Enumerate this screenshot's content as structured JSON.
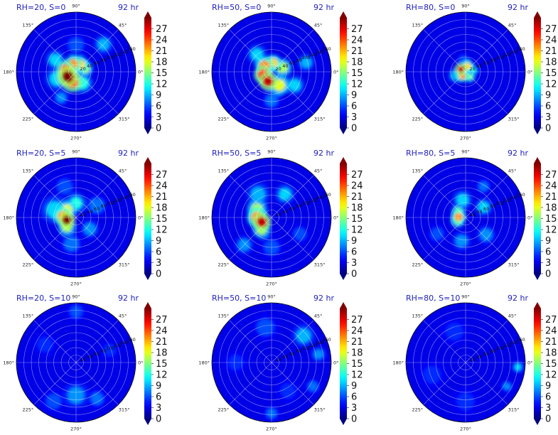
{
  "chart_data": {
    "type": "polar-contour",
    "colormap": "jet",
    "colorbar": {
      "ticks": [
        "0",
        "3",
        "6",
        "9",
        "12",
        "15",
        "18",
        "21",
        "24",
        "27"
      ],
      "min": 0,
      "max": 30
    },
    "angle_ticks": [
      "90°",
      "45°",
      "0°",
      "315°",
      "270°",
      "225°",
      "180°",
      "135°"
    ],
    "panels": [
      {
        "title_left": "RH=20, S=0",
        "title_right": "92 hr",
        "radial_labels": [
          "20",
          "40",
          "60",
          "80",
          "100",
          "120",
          "140",
          "160"
        ],
        "blobs": [
          {
            "theta": 210,
            "r": 0.16,
            "s": 0.1,
            "v": 30
          },
          {
            "theta": 250,
            "r": 0.18,
            "s": 0.1,
            "v": 26
          },
          {
            "theta": 170,
            "r": 0.18,
            "s": 0.09,
            "v": 24
          },
          {
            "theta": 110,
            "r": 0.14,
            "s": 0.08,
            "v": 22
          },
          {
            "theta": 60,
            "r": 0.14,
            "s": 0.08,
            "v": 20
          },
          {
            "theta": 20,
            "r": 0.16,
            "s": 0.08,
            "v": 16
          },
          {
            "theta": 300,
            "r": 0.22,
            "s": 0.1,
            "v": 12
          },
          {
            "theta": 150,
            "r": 0.4,
            "s": 0.1,
            "v": 10
          },
          {
            "theta": 45,
            "r": 0.65,
            "s": 0.1,
            "v": 9
          },
          {
            "theta": 240,
            "r": 0.5,
            "s": 0.08,
            "v": 8
          },
          {
            "theta": 200,
            "r": 0.34,
            "s": 0.12,
            "v": 10
          },
          {
            "theta": 90,
            "r": 0.45,
            "s": 0.12,
            "v": 6
          }
        ]
      },
      {
        "title_left": "RH=50, S=0",
        "title_right": "92 hr",
        "radial_labels": [
          "20",
          "40",
          "60",
          "80",
          "100",
          "120",
          "140",
          "160"
        ],
        "blobs": [
          {
            "theta": 250,
            "r": 0.17,
            "s": 0.09,
            "v": 28
          },
          {
            "theta": 200,
            "r": 0.15,
            "s": 0.09,
            "v": 26
          },
          {
            "theta": 140,
            "r": 0.15,
            "s": 0.09,
            "v": 22
          },
          {
            "theta": 80,
            "r": 0.15,
            "s": 0.08,
            "v": 20
          },
          {
            "theta": 20,
            "r": 0.2,
            "s": 0.09,
            "v": 16
          },
          {
            "theta": 300,
            "r": 0.26,
            "s": 0.1,
            "v": 18
          },
          {
            "theta": 130,
            "r": 0.38,
            "s": 0.1,
            "v": 10
          },
          {
            "theta": 330,
            "r": 0.45,
            "s": 0.1,
            "v": 10
          },
          {
            "theta": 15,
            "r": 0.6,
            "s": 0.09,
            "v": 9
          },
          {
            "theta": 270,
            "r": 0.48,
            "s": 0.1,
            "v": 7
          }
        ]
      },
      {
        "title_left": "RH=80, S=0",
        "title_right": "92 hr",
        "radial_labels": [
          "20",
          "40",
          "60",
          "80",
          "100",
          "120",
          "140",
          "160"
        ],
        "blobs": [
          {
            "theta": 150,
            "r": 0.09,
            "s": 0.06,
            "v": 28
          },
          {
            "theta": 230,
            "r": 0.09,
            "s": 0.06,
            "v": 22
          },
          {
            "theta": 70,
            "r": 0.1,
            "s": 0.06,
            "v": 20
          },
          {
            "theta": 310,
            "r": 0.11,
            "s": 0.06,
            "v": 14
          },
          {
            "theta": 10,
            "r": 0.12,
            "s": 0.06,
            "v": 12
          },
          {
            "theta": 200,
            "r": 0.18,
            "s": 0.08,
            "v": 9
          },
          {
            "theta": 100,
            "r": 0.2,
            "s": 0.07,
            "v": 6
          }
        ]
      },
      {
        "title_left": "RH=20, S=5",
        "title_right": "92 hr",
        "radial_labels": [
          "20",
          "40",
          "60",
          "80",
          "100",
          "120",
          "140",
          "160"
        ],
        "blobs": [
          {
            "theta": 195,
            "r": 0.16,
            "s": 0.08,
            "v": 30
          },
          {
            "theta": 175,
            "r": 0.22,
            "s": 0.09,
            "v": 22
          },
          {
            "theta": 140,
            "r": 0.2,
            "s": 0.09,
            "v": 18
          },
          {
            "theta": 225,
            "r": 0.22,
            "s": 0.09,
            "v": 16
          },
          {
            "theta": 90,
            "r": 0.24,
            "s": 0.1,
            "v": 12
          },
          {
            "theta": 160,
            "r": 0.38,
            "s": 0.14,
            "v": 10
          },
          {
            "theta": 320,
            "r": 0.3,
            "s": 0.1,
            "v": 8
          },
          {
            "theta": 30,
            "r": 0.4,
            "s": 0.12,
            "v": 7
          },
          {
            "theta": 260,
            "r": 0.45,
            "s": 0.12,
            "v": 7
          },
          {
            "theta": 110,
            "r": 0.55,
            "s": 0.12,
            "v": 6
          }
        ]
      },
      {
        "title_left": "RH=50, S=5",
        "title_right": "92 hr",
        "radial_labels": [
          "20",
          "40",
          "60",
          "80",
          "100",
          "120",
          "140",
          "160"
        ],
        "blobs": [
          {
            "theta": 205,
            "r": 0.18,
            "s": 0.09,
            "v": 28
          },
          {
            "theta": 180,
            "r": 0.24,
            "s": 0.1,
            "v": 22
          },
          {
            "theta": 150,
            "r": 0.28,
            "s": 0.1,
            "v": 16
          },
          {
            "theta": 230,
            "r": 0.26,
            "s": 0.09,
            "v": 16
          },
          {
            "theta": 60,
            "r": 0.45,
            "s": 0.1,
            "v": 10
          },
          {
            "theta": 120,
            "r": 0.45,
            "s": 0.12,
            "v": 9
          },
          {
            "theta": 225,
            "r": 0.65,
            "s": 0.1,
            "v": 8
          },
          {
            "theta": 270,
            "r": 0.5,
            "s": 0.12,
            "v": 6
          },
          {
            "theta": 330,
            "r": 0.55,
            "s": 0.1,
            "v": 6
          }
        ]
      },
      {
        "title_left": "RH=80, S=5",
        "title_right": "92 hr",
        "radial_labels": [
          "20",
          "40",
          "60",
          "80",
          "100",
          "120",
          "140",
          "160"
        ],
        "blobs": [
          {
            "theta": 175,
            "r": 0.12,
            "s": 0.07,
            "v": 22
          },
          {
            "theta": 200,
            "r": 0.14,
            "s": 0.07,
            "v": 18
          },
          {
            "theta": 140,
            "r": 0.16,
            "s": 0.07,
            "v": 14
          },
          {
            "theta": 100,
            "r": 0.3,
            "s": 0.1,
            "v": 10
          },
          {
            "theta": 30,
            "r": 0.35,
            "s": 0.09,
            "v": 10
          },
          {
            "theta": 260,
            "r": 0.4,
            "s": 0.1,
            "v": 8
          },
          {
            "theta": 320,
            "r": 0.45,
            "s": 0.1,
            "v": 8
          },
          {
            "theta": 60,
            "r": 0.6,
            "s": 0.08,
            "v": 7
          },
          {
            "theta": 210,
            "r": 0.55,
            "s": 0.1,
            "v": 6
          }
        ]
      },
      {
        "title_left": "RH=20, S=10",
        "title_right": "92 hr",
        "radial_labels": [
          "20",
          "40",
          "60",
          "80",
          "100",
          "120",
          "140",
          "160"
        ],
        "blobs": [
          {
            "theta": 270,
            "r": 0.55,
            "s": 0.14,
            "v": 8
          },
          {
            "theta": 300,
            "r": 0.7,
            "s": 0.1,
            "v": 7
          },
          {
            "theta": 240,
            "r": 0.75,
            "s": 0.12,
            "v": 6
          },
          {
            "theta": 90,
            "r": 0.85,
            "s": 0.1,
            "v": 6
          },
          {
            "theta": 20,
            "r": 0.6,
            "s": 0.1,
            "v": 5
          },
          {
            "theta": 150,
            "r": 0.6,
            "s": 0.12,
            "v": 5
          }
        ]
      },
      {
        "title_left": "RH=50, S=10",
        "title_right": "92 hr",
        "radial_labels": [
          "20",
          "40",
          "60",
          "80",
          "100",
          "120",
          "140",
          "160"
        ],
        "blobs": [
          {
            "theta": 40,
            "r": 0.7,
            "s": 0.12,
            "v": 9
          },
          {
            "theta": 10,
            "r": 0.8,
            "s": 0.08,
            "v": 8
          },
          {
            "theta": 330,
            "r": 0.8,
            "s": 0.08,
            "v": 7
          },
          {
            "theta": 270,
            "r": 0.85,
            "s": 0.08,
            "v": 7
          },
          {
            "theta": 100,
            "r": 0.6,
            "s": 0.14,
            "v": 6
          },
          {
            "theta": 180,
            "r": 0.6,
            "s": 0.12,
            "v": 5
          },
          {
            "theta": 300,
            "r": 0.55,
            "s": 0.12,
            "v": 5
          }
        ]
      },
      {
        "title_left": "RH=80, S=10",
        "title_right": "92 hr",
        "radial_labels": [
          "20",
          "40",
          "60",
          "80",
          "100",
          "120",
          "140",
          "160"
        ],
        "blobs": [
          {
            "theta": 355,
            "r": 0.88,
            "s": 0.06,
            "v": 10
          },
          {
            "theta": 330,
            "r": 0.8,
            "s": 0.06,
            "v": 8
          },
          {
            "theta": 110,
            "r": 0.55,
            "s": 0.14,
            "v": 5
          },
          {
            "theta": 200,
            "r": 0.6,
            "s": 0.14,
            "v": 5
          },
          {
            "theta": 270,
            "r": 0.65,
            "s": 0.14,
            "v": 5
          }
        ]
      }
    ]
  }
}
